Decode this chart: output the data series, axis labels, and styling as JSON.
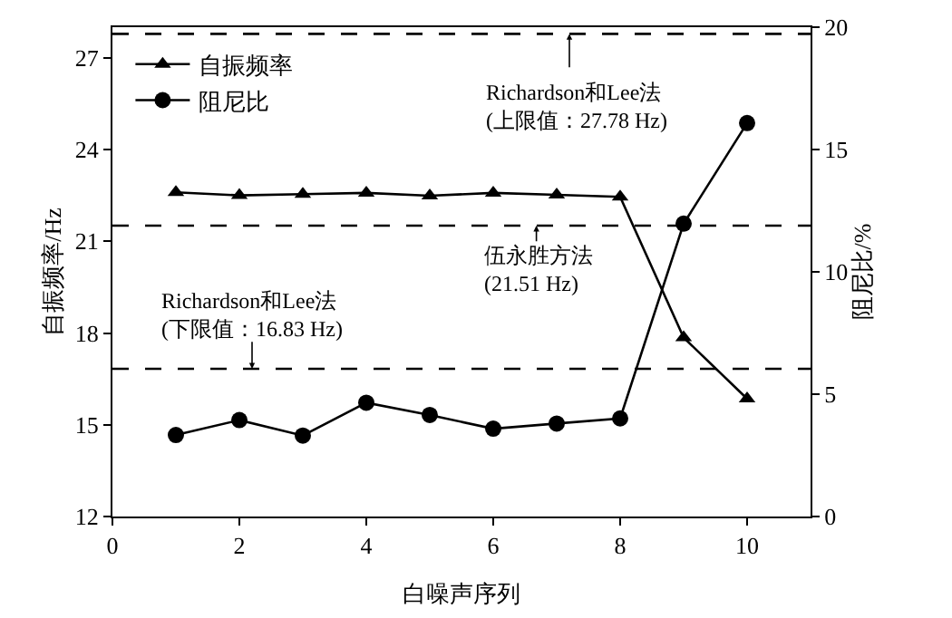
{
  "chart_data": {
    "type": "line",
    "xlabel": "白噪声序列",
    "ylabel": "自振频率/Hz",
    "y2label": "阻尼比/%",
    "x": [
      1,
      2,
      3,
      4,
      5,
      6,
      7,
      8,
      9,
      10
    ],
    "series": [
      {
        "name": "自振频率",
        "color": "#000000",
        "marker": "triangle",
        "values": [
          22.6,
          22.5,
          22.54,
          22.58,
          22.49,
          22.58,
          22.52,
          22.45,
          17.85,
          15.85
        ]
      },
      {
        "name": "阻尼比",
        "color": "#000000",
        "marker": "circle",
        "axis": "y2",
        "values": [
          3.33,
          3.94,
          3.31,
          4.65,
          4.15,
          3.59,
          3.8,
          4.01,
          11.97,
          16.08
        ]
      }
    ],
    "xlim": [
      0,
      11
    ],
    "xticks": [
      0,
      2,
      4,
      6,
      8,
      10
    ],
    "ylim": [
      12,
      28
    ],
    "yticks": [
      12,
      15,
      18,
      21,
      24,
      27
    ],
    "y2lim": [
      0,
      20
    ],
    "y2ticks": [
      0,
      5,
      10,
      15,
      20
    ],
    "ref_lines": [
      {
        "axis": "y",
        "value": 27.78,
        "label": "Richardson和Lee法\n(上限值：27.78 Hz)",
        "color": "#000000",
        "line_style": "dashed"
      },
      {
        "axis": "y",
        "value": 21.51,
        "label": "伍永胜方法\n(21.51 Hz)",
        "color": "#000000",
        "line_style": "dashed"
      },
      {
        "axis": "y",
        "value": 16.83,
        "label": "Richardson和Lee法\n(下限值：16.83 Hz)",
        "color": "#000000",
        "line_style": "dashed"
      }
    ],
    "legend": "top left",
    "line_style": "solid"
  }
}
